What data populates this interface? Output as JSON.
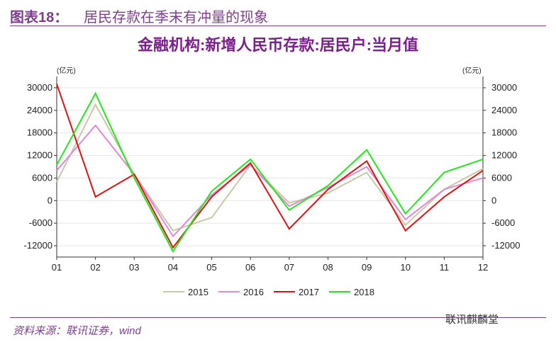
{
  "figure": {
    "label": "图表18：",
    "title": "居民存款在季末有冲量的现象",
    "source": "资料来源：联讯证券，wind",
    "watermark": "联讯麒麟堂"
  },
  "chart_data": {
    "type": "line",
    "title": "金融机构:新增人民币存款:居民户:当月值",
    "unit_left": "(亿元)",
    "unit_right": "(亿元)",
    "categories": [
      "01",
      "02",
      "03",
      "04",
      "05",
      "06",
      "07",
      "08",
      "09",
      "10",
      "11",
      "12"
    ],
    "ylim": [
      -15000,
      33000
    ],
    "yticks": [
      30000,
      24000,
      18000,
      12000,
      6000,
      0,
      -6000,
      -12000
    ],
    "ytick_labels": [
      "30000",
      "24000",
      "18000",
      "12000",
      "6000",
      "0",
      "-6000",
      "-12000"
    ],
    "grid": true,
    "legend_position": "bottom",
    "series": [
      {
        "name": "2015",
        "color": "#c8c8a8",
        "values": [
          5000,
          25500,
          7000,
          -8000,
          -4500,
          9500,
          -600,
          2000,
          7500,
          -6500,
          3000,
          8500
        ]
      },
      {
        "name": "2016",
        "color": "#e08ad6",
        "values": [
          8000,
          20000,
          7000,
          -9500,
          1500,
          9500,
          -1500,
          3500,
          9000,
          -5000,
          3000,
          6000
        ]
      },
      {
        "name": "2017",
        "color": "#e31212",
        "values": [
          31000,
          1000,
          7000,
          -12500,
          1000,
          10000,
          -7500,
          3000,
          10500,
          -8000,
          1000,
          8000
        ]
      },
      {
        "name": "2018",
        "color": "#22e81c",
        "values": [
          9500,
          28500,
          6000,
          -13500,
          2500,
          11000,
          -2500,
          4000,
          13500,
          -3500,
          7500,
          11000
        ]
      }
    ]
  }
}
